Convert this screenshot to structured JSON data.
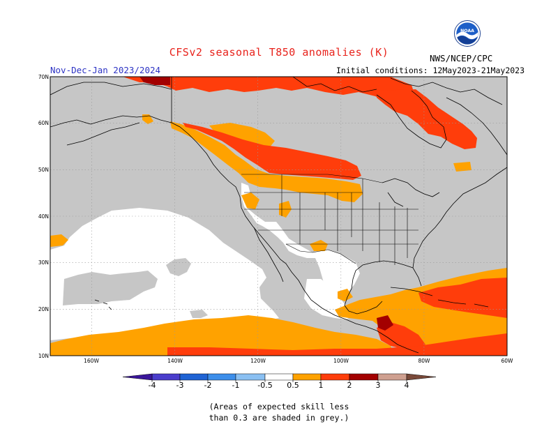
{
  "header": {
    "title": "CFSv2 seasonal T850 anomalies (K)",
    "period": "Nov-Dec-Jan 2023/2024",
    "initial_conditions": "Initial conditions: 12May2023-21May2023",
    "agency": "NWS/NCEP/CPC",
    "logo_text": "NOAA"
  },
  "map": {
    "lat_labels": [
      "70N",
      "60N",
      "50N",
      "40N",
      "30N",
      "20N",
      "10N"
    ],
    "lon_labels": [
      "160W",
      "140W",
      "120W",
      "100W",
      "80W",
      "60W"
    ],
    "skill_mask_color": "#c6c6c6",
    "land_color": "#ffffff",
    "border_color": "#000000"
  },
  "legend": {
    "ticks": [
      "-4",
      "-3",
      "-2",
      "-1",
      "-0.5",
      "0.5",
      "1",
      "2",
      "3",
      "4"
    ],
    "colors": {
      "lt_-4": "#3a169a",
      "-4_-3": "#4a3dcc",
      "-3_-2": "#1f63d4",
      "-2_-1": "#3c8eea",
      "-1_-0.5": "#8ac0f2",
      "-0.5_0.5": "#ffffff",
      "0.5_1": "#ffa200",
      "1_2": "#ff3d0b",
      "2_3": "#a30000",
      "3_4": "#cfa090",
      "gt_4": "#7a4a3a"
    }
  },
  "footnote": {
    "line1": "(Areas of expected skill less",
    "line2": "than 0.3 are shaded in grey.)"
  }
}
